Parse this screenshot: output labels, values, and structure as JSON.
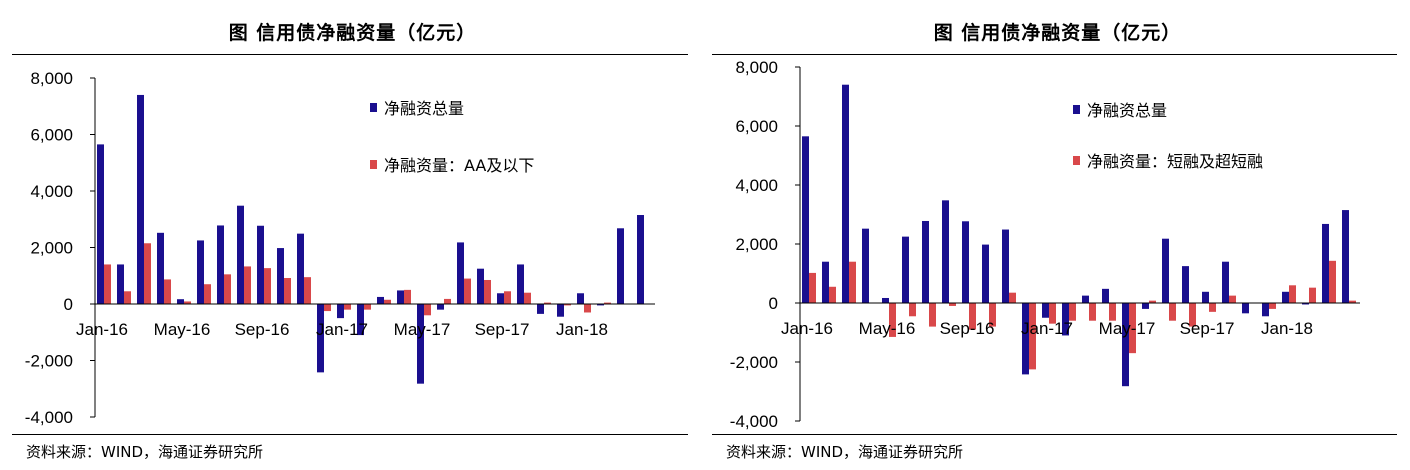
{
  "colors": {
    "series1": "#1a0f8f",
    "series2": "#d9484a",
    "axis": "#000000"
  },
  "source": "资料来源：WIND，海通证券研究所",
  "chart_data": [
    {
      "type": "bar",
      "title": "图  信用债净融资量（亿元）",
      "ylim": [
        -4000,
        8000
      ],
      "yticks": [
        -4000,
        -2000,
        0,
        2000,
        4000,
        6000,
        8000
      ],
      "ytick_labels": [
        "-4,000",
        "-2,000",
        "0",
        "2,000",
        "4,000",
        "6,000",
        "8,000"
      ],
      "categories": [
        "Jan-16",
        "Feb-16",
        "Mar-16",
        "Apr-16",
        "May-16",
        "Jun-16",
        "Jul-16",
        "Aug-16",
        "Sep-16",
        "Oct-16",
        "Nov-16",
        "Dec-16",
        "Jan-17",
        "Feb-17",
        "Mar-17",
        "Apr-17",
        "May-17",
        "Jun-17",
        "Jul-17",
        "Aug-17",
        "Sep-17",
        "Oct-17",
        "Nov-17",
        "Dec-17",
        "Jan-18",
        "Feb-18",
        "Mar-18",
        "Apr-18"
      ],
      "xtick_labels": [
        "Jan-16",
        "May-16",
        "Sep-16",
        "Jan-17",
        "May-17",
        "Sep-17",
        "Jan-18"
      ],
      "legend_position": "top-right",
      "series": [
        {
          "name": "净融资总量",
          "values": [
            5650,
            1400,
            7400,
            2520,
            170,
            2250,
            2780,
            3480,
            2770,
            1980,
            2490,
            -2420,
            -500,
            -1100,
            250,
            480,
            -2820,
            -200,
            2180,
            1250,
            380,
            1400,
            -350,
            -450,
            380,
            -50,
            2680,
            3150
          ]
        },
        {
          "name": "净融资量：AA及以下",
          "values": [
            1400,
            450,
            2150,
            870,
            90,
            700,
            1050,
            1330,
            1270,
            920,
            950,
            -250,
            -200,
            -200,
            150,
            500,
            -400,
            180,
            900,
            850,
            450,
            400,
            50,
            -50,
            -300,
            50,
            0,
            0
          ]
        }
      ]
    },
    {
      "type": "bar",
      "title": "图  信用债净融资量（亿元）",
      "ylim": [
        -4000,
        8000
      ],
      "yticks": [
        -4000,
        -2000,
        0,
        2000,
        4000,
        6000,
        8000
      ],
      "ytick_labels": [
        "-4,000",
        "-2,000",
        "0",
        "2,000",
        "4,000",
        "6,000",
        "8,000"
      ],
      "categories": [
        "Jan-16",
        "Feb-16",
        "Mar-16",
        "Apr-16",
        "May-16",
        "Jun-16",
        "Jul-16",
        "Aug-16",
        "Sep-16",
        "Oct-16",
        "Nov-16",
        "Dec-16",
        "Jan-17",
        "Feb-17",
        "Mar-17",
        "Apr-17",
        "May-17",
        "Jun-17",
        "Jul-17",
        "Aug-17",
        "Sep-17",
        "Oct-17",
        "Nov-17",
        "Dec-17",
        "Jan-18",
        "Feb-18",
        "Mar-18",
        "Apr-18"
      ],
      "xtick_labels": [
        "Jan-16",
        "May-16",
        "Sep-16",
        "Jan-17",
        "May-17",
        "Sep-17",
        "Jan-18"
      ],
      "legend_position": "top-right",
      "series": [
        {
          "name": "净融资总量",
          "values": [
            5650,
            1400,
            7400,
            2520,
            170,
            2250,
            2780,
            3480,
            2770,
            1980,
            2490,
            -2420,
            -500,
            -1100,
            250,
            480,
            -2820,
            -200,
            2180,
            1250,
            380,
            1400,
            -350,
            -450,
            380,
            -50,
            2680,
            3150
          ]
        },
        {
          "name": "净融资量：短融及超短融",
          "values": [
            1020,
            550,
            1400,
            0,
            -1150,
            -450,
            -800,
            -100,
            -900,
            -800,
            350,
            -2250,
            -700,
            -600,
            -600,
            -600,
            -1700,
            80,
            -600,
            -800,
            -300,
            250,
            0,
            -200,
            600,
            520,
            1430,
            80
          ]
        }
      ]
    }
  ]
}
